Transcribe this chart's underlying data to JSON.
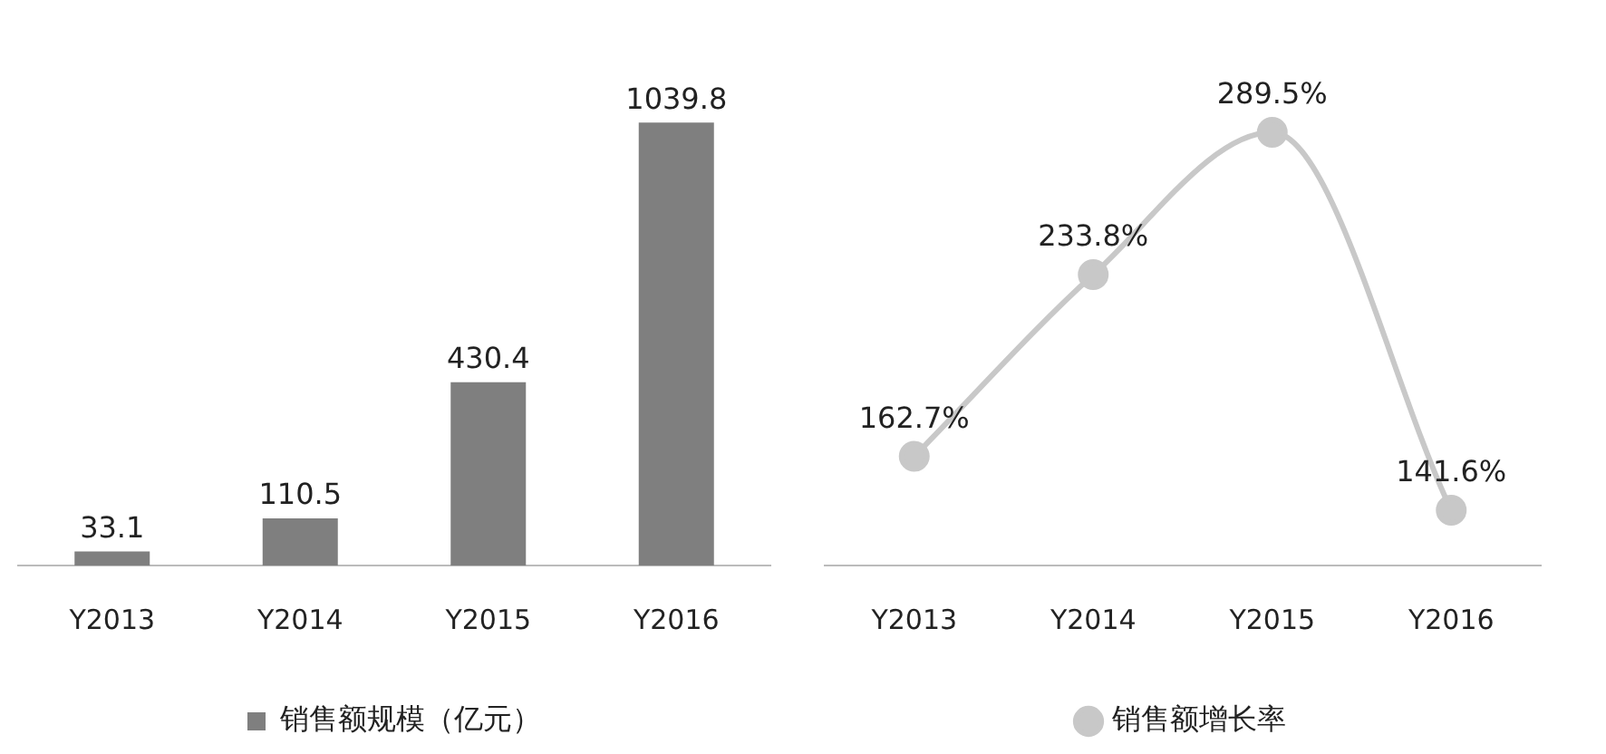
{
  "chart_data": [
    {
      "type": "bar",
      "categories": [
        "Y2013",
        "Y2014",
        "Y2015",
        "Y2016"
      ],
      "series": [
        {
          "name": "销售额规模（亿元）",
          "color": "#7f7f7f",
          "values": [
            33.1,
            110.5,
            430.4,
            1039.8
          ]
        }
      ],
      "data_labels": true,
      "legend": "bottom",
      "grid": false,
      "tick_labels": "x"
    },
    {
      "type": "line",
      "categories": [
        "Y2013",
        "Y2014",
        "Y2015",
        "Y2016"
      ],
      "series": [
        {
          "name": "销售额增长率",
          "color": "#c8c8c8",
          "values": [
            162.7,
            233.8,
            289.5,
            141.6
          ],
          "value_labels": [
            "162.7%",
            "233.8%",
            "289.5%",
            "141.6%"
          ]
        }
      ],
      "legend": "bottom",
      "grid": false,
      "tick_labels": "x",
      "marker": "circle"
    }
  ]
}
